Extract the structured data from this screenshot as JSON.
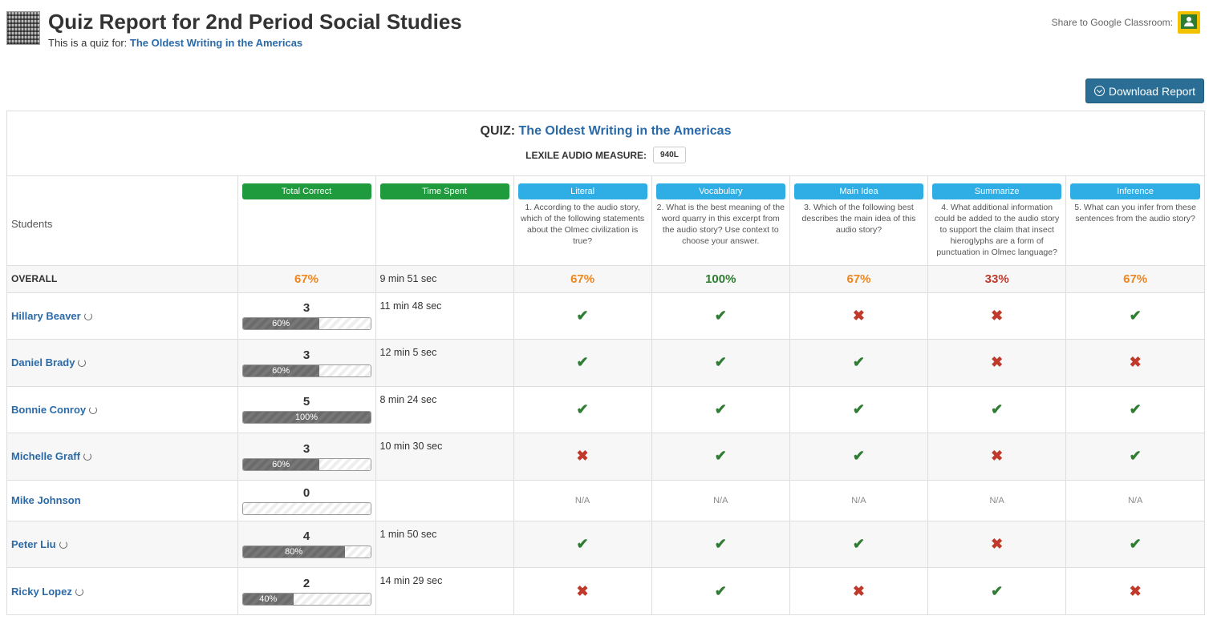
{
  "header": {
    "title": "Quiz Report for 2nd Period Social Studies",
    "subtitle_prefix": "This is a quiz for:",
    "subtitle_link": "The Oldest Writing in the Americas",
    "share_label": "Share to Google Classroom:"
  },
  "download_label": "Download Report",
  "quiz": {
    "label": "QUIZ:",
    "name": "The Oldest Writing in the Americas",
    "lexile_label": "LEXILE AUDIO MEASURE:",
    "lexile_value": "940L"
  },
  "columns": {
    "students": "Students",
    "total_correct": "Total Correct",
    "time_spent": "Time Spent",
    "questions": [
      {
        "category": "Literal",
        "text": "1. According to the audio story, which of the following statements about the Olmec civilization is true?"
      },
      {
        "category": "Vocabulary",
        "text": "2. What is the best meaning of the word quarry in this excerpt from the audio story? Use context to choose your answer."
      },
      {
        "category": "Main Idea",
        "text": "3. Which of the following best describes the main idea of this audio story?"
      },
      {
        "category": "Summarize",
        "text": "4. What additional information could be added to the audio story to support the claim that insect hieroglyphs are a form of punctuation in Olmec language?"
      },
      {
        "category": "Inference",
        "text": "5. What can you infer from these sentences from the audio story?"
      }
    ]
  },
  "overall": {
    "label": "OVERALL",
    "total": "67%",
    "time": "9 min 51 sec",
    "question_pcts": [
      "67%",
      "100%",
      "67%",
      "33%",
      "67%"
    ],
    "colors": {
      "orange": "#f0861f",
      "green": "#2e7d32",
      "red": "#c0392b"
    }
  },
  "students": [
    {
      "name": "Hillary Beaver",
      "retry": true,
      "score": "3",
      "progress": 60,
      "progress_label": "60%",
      "time": "11 min 48 sec",
      "answers": [
        "ok",
        "ok",
        "bad",
        "bad",
        "ok"
      ]
    },
    {
      "name": "Daniel Brady",
      "retry": true,
      "score": "3",
      "progress": 60,
      "progress_label": "60%",
      "time": "12 min 5 sec",
      "answers": [
        "ok",
        "ok",
        "ok",
        "bad",
        "bad"
      ]
    },
    {
      "name": "Bonnie Conroy",
      "retry": true,
      "score": "5",
      "progress": 100,
      "progress_label": "100%",
      "time": "8 min 24 sec",
      "answers": [
        "ok",
        "ok",
        "ok",
        "ok",
        "ok"
      ]
    },
    {
      "name": "Michelle Graff",
      "retry": true,
      "score": "3",
      "progress": 60,
      "progress_label": "60%",
      "time": "10 min 30 sec",
      "answers": [
        "bad",
        "ok",
        "ok",
        "bad",
        "ok"
      ]
    },
    {
      "name": "Mike Johnson",
      "retry": false,
      "score": "0",
      "progress": 0,
      "progress_label": "",
      "time": "",
      "answers": [
        "N/A",
        "N/A",
        "N/A",
        "N/A",
        "N/A"
      ]
    },
    {
      "name": "Peter Liu",
      "retry": true,
      "score": "4",
      "progress": 80,
      "progress_label": "80%",
      "time": "1 min 50 sec",
      "answers": [
        "ok",
        "ok",
        "ok",
        "bad",
        "ok"
      ]
    },
    {
      "name": "Ricky Lopez",
      "retry": true,
      "score": "2",
      "progress": 40,
      "progress_label": "40%",
      "time": "14 min 29 sec",
      "answers": [
        "bad",
        "ok",
        "bad",
        "ok",
        "bad"
      ]
    }
  ]
}
